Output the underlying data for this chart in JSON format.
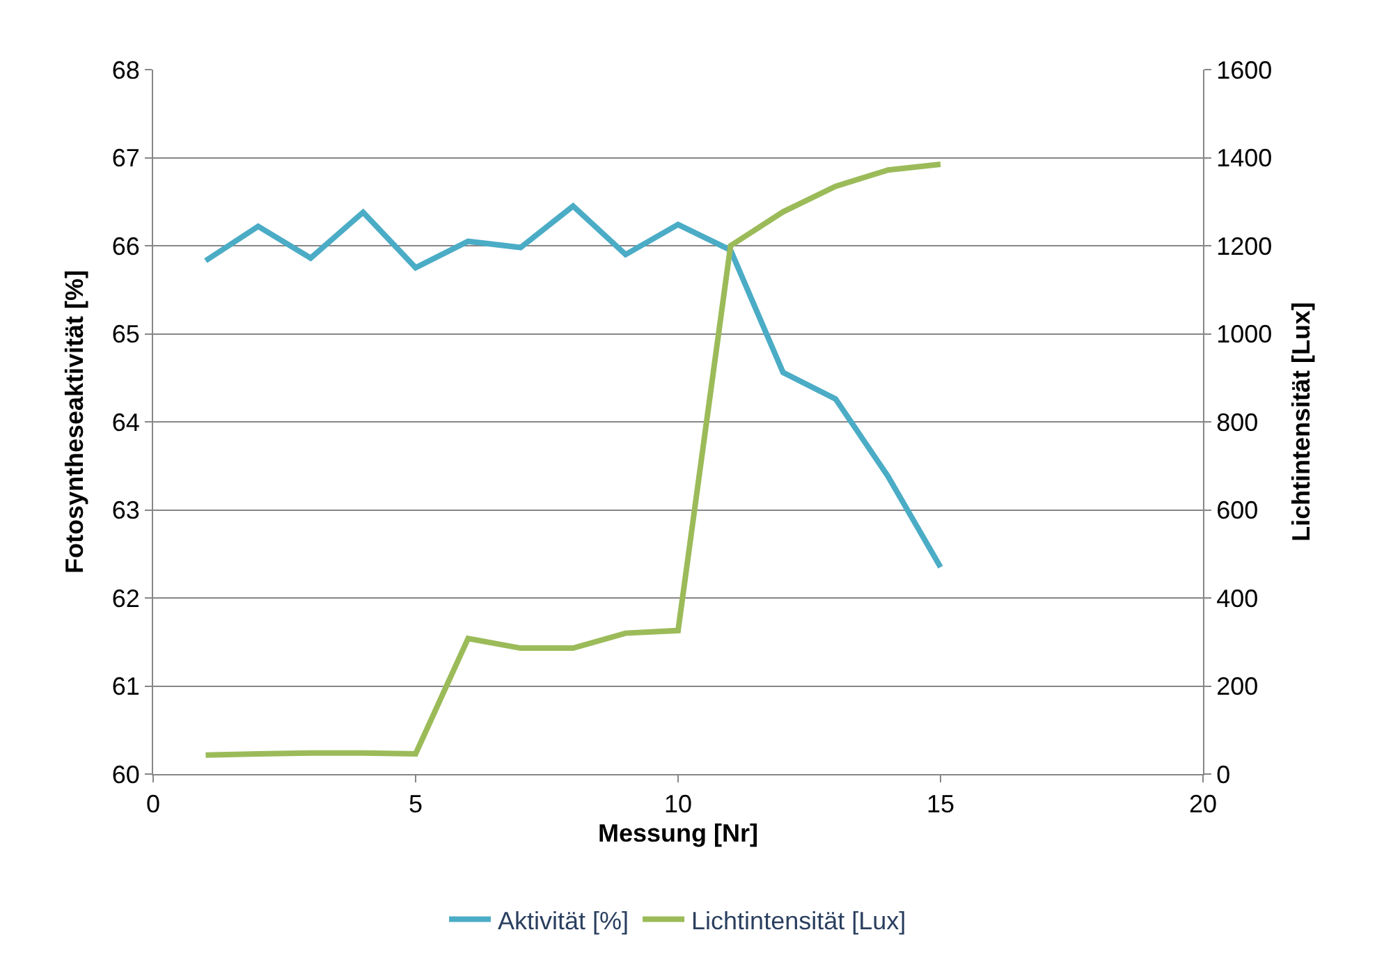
{
  "chart_data": {
    "type": "line",
    "xlabel": "Messung [Nr]",
    "ylabel": "Fotosyntheseaktivität [%]",
    "y2label": "Lichtintensität [Lux]",
    "x": [
      1,
      2,
      3,
      4,
      5,
      6,
      7,
      8,
      9,
      10,
      11,
      12,
      13,
      14,
      15
    ],
    "series": [
      {
        "name": "Aktivität [%]",
        "color": "#4bacc6",
        "values": [
          65.83,
          66.22,
          65.86,
          66.38,
          65.75,
          66.05,
          65.98,
          66.45,
          65.9,
          66.24,
          65.95,
          64.56,
          64.26,
          63.38,
          62.35
        ]
      },
      {
        "name": "Lichtintensität [Lux]",
        "color": "#9bbb59",
        "axis": "y2",
        "values": [
          43,
          46,
          48,
          48,
          46,
          308,
          286,
          286,
          320,
          326,
          1200,
          1277,
          1335,
          1372,
          1385
        ]
      }
    ],
    "xlim": [
      0,
      20
    ],
    "xticks": [
      0,
      5,
      10,
      15,
      20
    ],
    "ylim": [
      60,
      68
    ],
    "yticks": [
      60,
      61,
      62,
      63,
      64,
      65,
      66,
      67,
      68
    ],
    "y2lim": [
      0,
      1600
    ],
    "y2ticks": [
      0,
      200,
      400,
      600,
      800,
      1000,
      1200,
      1400,
      1600
    ],
    "grid": "y",
    "legend": "bottom",
    "marker": "none",
    "line_style": "solid"
  }
}
